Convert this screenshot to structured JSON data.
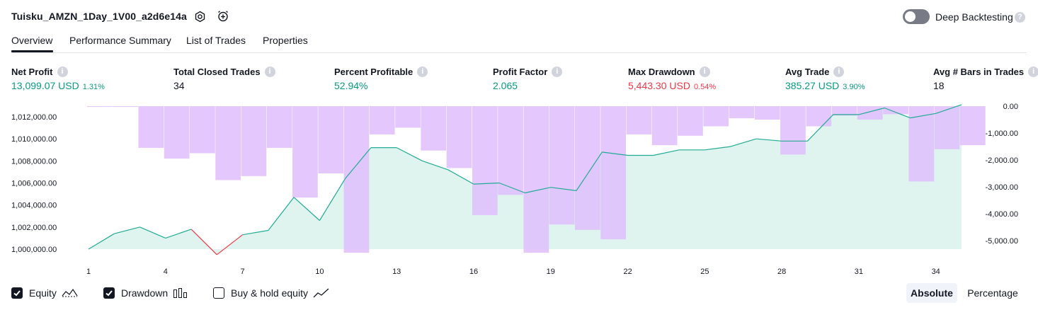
{
  "header": {
    "title": "Tuisku_AMZN_1Day_1V00_a2d6e14a",
    "settings_icon": "gear-icon",
    "alert_icon": "add-alert-icon",
    "deep_backtesting_label": "Deep Backtesting",
    "deep_backtesting_on": false,
    "help_icon_glyph": "?"
  },
  "tabs": [
    {
      "label": "Overview",
      "active": true
    },
    {
      "label": "Performance Summary",
      "active": false
    },
    {
      "label": "List of Trades",
      "active": false
    },
    {
      "label": "Properties",
      "active": false
    }
  ],
  "metrics": [
    {
      "label": "Net Profit",
      "value": "13,099.07 USD",
      "pct": "1.31%",
      "tone": "green"
    },
    {
      "label": "Total Closed Trades",
      "value": "34",
      "pct": "",
      "tone": "neutral"
    },
    {
      "label": "Percent Profitable",
      "value": "52.94%",
      "pct": "",
      "tone": "green"
    },
    {
      "label": "Profit Factor",
      "value": "2.065",
      "pct": "",
      "tone": "green"
    },
    {
      "label": "Max Drawdown",
      "value": "5,443.30 USD",
      "pct": "0.54%",
      "tone": "red"
    },
    {
      "label": "Avg Trade",
      "value": "385.27 USD",
      "pct": "3.90%",
      "tone": "green"
    },
    {
      "label": "Avg # Bars in Trades",
      "value": "18",
      "pct": "",
      "tone": "neutral"
    }
  ],
  "chart_data": {
    "type": "area",
    "series": [
      {
        "name": "Equity",
        "type": "area",
        "x": [
          1,
          2,
          3,
          4,
          5,
          6,
          7,
          8,
          9,
          10,
          11,
          12,
          13,
          14,
          15,
          16,
          17,
          18,
          19,
          20,
          21,
          22,
          23,
          24,
          25,
          26,
          27,
          28,
          29,
          30,
          31,
          32,
          33,
          34,
          35
        ],
        "values": [
          1000000,
          1001400,
          1002000,
          1001000,
          1001800,
          999500,
          1001300,
          1001700,
          1004700,
          1002600,
          1006400,
          1009200,
          1009200,
          1008000,
          1007200,
          1005900,
          1006000,
          1005100,
          1005600,
          1005300,
          1008800,
          1008500,
          1008500,
          1009000,
          1009000,
          1009300,
          1010000,
          1009800,
          1009800,
          1012200,
          1012200,
          1012800,
          1011900,
          1012300,
          1013100
        ]
      },
      {
        "name": "Drawdown",
        "type": "bar",
        "x": [
          1,
          2,
          3,
          4,
          5,
          6,
          7,
          8,
          9,
          10,
          11,
          12,
          13,
          14,
          15,
          16,
          17,
          18,
          19,
          20,
          21,
          22,
          23,
          24,
          25,
          26,
          27,
          28,
          29,
          30,
          31,
          32,
          33,
          34,
          35
        ],
        "values": [
          0,
          0,
          -1550,
          -1950,
          -1750,
          -2750,
          -2600,
          -1550,
          -3400,
          -2500,
          -5450,
          -1050,
          -800,
          -1650,
          -2300,
          -4050,
          -3300,
          -5450,
          -4400,
          -4600,
          -4950,
          -1050,
          -1450,
          -1100,
          -750,
          -450,
          -500,
          -1800,
          -750,
          -350,
          -500,
          -300,
          -2800,
          -1600,
          -1450
        ]
      }
    ],
    "title": "",
    "ylim_left": [
      999000,
      1013100
    ],
    "ylim_right": [
      -5500,
      0
    ],
    "yticks_left": [
      "1,012,000.00",
      "1,010,000.00",
      "1,008,000.00",
      "1,006,000.00",
      "1,004,000.00",
      "1,002,000.00",
      "1,000,000.00"
    ],
    "yticks_right": [
      "0.00",
      "-1,000.00",
      "-2,000.00",
      "-3,000.00",
      "-4,000.00",
      "-5,000.00"
    ],
    "xticks": [
      "1",
      "4",
      "7",
      "10",
      "13",
      "16",
      "19",
      "22",
      "25",
      "28",
      "31",
      "34"
    ],
    "grid": false,
    "colors": {
      "equity_line": "#22ab94",
      "equity_fill": "#d4f0e8",
      "equity_under_drawdown": "#2962ff",
      "drawdown_fill": "#dfbdfd",
      "negative_line": "#f23645"
    }
  },
  "legend": {
    "equity": {
      "label": "Equity",
      "checked": true,
      "icon": "equity-line-icon"
    },
    "drawdown": {
      "label": "Drawdown",
      "checked": true,
      "icon": "bar-chart-icon"
    },
    "buyhold": {
      "label": "Buy & hold equity",
      "checked": false,
      "icon": "line-chart-icon"
    }
  },
  "view_toggle": {
    "absolute": "Absolute",
    "percentage": "Percentage",
    "selected": "Absolute"
  }
}
